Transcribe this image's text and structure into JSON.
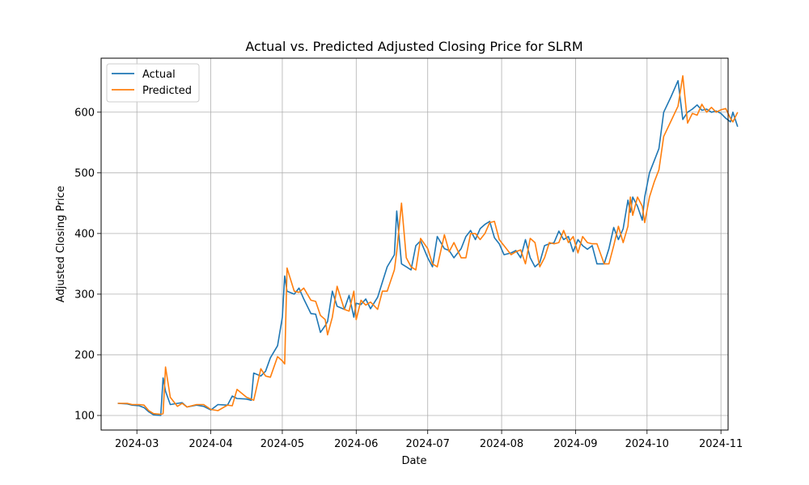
{
  "chart_data": {
    "type": "line",
    "title": "Actual vs. Predicted Adjusted Closing Price for SLRM",
    "xlabel": "Date",
    "ylabel": "Adjusted Closing Price",
    "xlim": [
      "2024-02-15",
      "2024-11-04"
    ],
    "ylim": [
      76,
      689
    ],
    "grid": true,
    "legend_position": "upper-left",
    "x_ticks": [
      "2024-03",
      "2024-04",
      "2024-05",
      "2024-06",
      "2024-07",
      "2024-08",
      "2024-09",
      "2024-10",
      "2024-11"
    ],
    "y_ticks": [
      100,
      200,
      300,
      400,
      500,
      600
    ],
    "series": [
      {
        "name": "Actual",
        "color": "#1f77b4",
        "points": [
          [
            "2024-02-22",
            120
          ],
          [
            "2024-02-26",
            119
          ],
          [
            "2024-02-28",
            117
          ],
          [
            "2024-03-02",
            116
          ],
          [
            "2024-03-04",
            113
          ],
          [
            "2024-03-06",
            106
          ],
          [
            "2024-03-08",
            101
          ],
          [
            "2024-03-11",
            100
          ],
          [
            "2024-03-12",
            162
          ],
          [
            "2024-03-13",
            140
          ],
          [
            "2024-03-15",
            118
          ],
          [
            "2024-03-18",
            120
          ],
          [
            "2024-03-20",
            121
          ],
          [
            "2024-03-22",
            114
          ],
          [
            "2024-03-26",
            117
          ],
          [
            "2024-03-29",
            115
          ],
          [
            "2024-04-01",
            109
          ],
          [
            "2024-04-04",
            118
          ],
          [
            "2024-04-08",
            117
          ],
          [
            "2024-04-10",
            132
          ],
          [
            "2024-04-12",
            128
          ],
          [
            "2024-04-16",
            127
          ],
          [
            "2024-04-18",
            125
          ],
          [
            "2024-04-19",
            170
          ],
          [
            "2024-04-22",
            165
          ],
          [
            "2024-04-24",
            173
          ],
          [
            "2024-04-26",
            195
          ],
          [
            "2024-04-29",
            215
          ],
          [
            "2024-05-01",
            262
          ],
          [
            "2024-05-02",
            330
          ],
          [
            "2024-05-03",
            305
          ],
          [
            "2024-05-06",
            300
          ],
          [
            "2024-05-08",
            310
          ],
          [
            "2024-05-10",
            292
          ],
          [
            "2024-05-13",
            268
          ],
          [
            "2024-05-15",
            267
          ],
          [
            "2024-05-17",
            237
          ],
          [
            "2024-05-19",
            248
          ],
          [
            "2024-05-20",
            255
          ],
          [
            "2024-05-22",
            305
          ],
          [
            "2024-05-24",
            280
          ],
          [
            "2024-05-27",
            275
          ],
          [
            "2024-05-29",
            298
          ],
          [
            "2024-05-31",
            262
          ],
          [
            "2024-06-01",
            285
          ],
          [
            "2024-06-03",
            283
          ],
          [
            "2024-06-05",
            292
          ],
          [
            "2024-06-07",
            276
          ],
          [
            "2024-06-10",
            295
          ],
          [
            "2024-06-12",
            320
          ],
          [
            "2024-06-14",
            345
          ],
          [
            "2024-06-17",
            365
          ],
          [
            "2024-06-18",
            437
          ],
          [
            "2024-06-20",
            350
          ],
          [
            "2024-06-22",
            345
          ],
          [
            "2024-06-24",
            340
          ],
          [
            "2024-06-26",
            380
          ],
          [
            "2024-06-28",
            388
          ],
          [
            "2024-07-01",
            360
          ],
          [
            "2024-07-03",
            345
          ],
          [
            "2024-07-05",
            395
          ],
          [
            "2024-07-08",
            375
          ],
          [
            "2024-07-10",
            372
          ],
          [
            "2024-07-12",
            360
          ],
          [
            "2024-07-15",
            375
          ],
          [
            "2024-07-17",
            395
          ],
          [
            "2024-07-19",
            405
          ],
          [
            "2024-07-21",
            390
          ],
          [
            "2024-07-23",
            408
          ],
          [
            "2024-07-25",
            415
          ],
          [
            "2024-07-27",
            420
          ],
          [
            "2024-07-29",
            393
          ],
          [
            "2024-07-31",
            383
          ],
          [
            "2024-08-02",
            365
          ],
          [
            "2024-08-05",
            368
          ],
          [
            "2024-08-07",
            372
          ],
          [
            "2024-08-09",
            360
          ],
          [
            "2024-08-11",
            390
          ],
          [
            "2024-08-13",
            360
          ],
          [
            "2024-08-15",
            345
          ],
          [
            "2024-08-17",
            352
          ],
          [
            "2024-08-19",
            380
          ],
          [
            "2024-08-21",
            383
          ],
          [
            "2024-08-23",
            385
          ],
          [
            "2024-08-25",
            404
          ],
          [
            "2024-08-27",
            390
          ],
          [
            "2024-08-29",
            395
          ],
          [
            "2024-08-31",
            370
          ],
          [
            "2024-09-02",
            390
          ],
          [
            "2024-09-04",
            380
          ],
          [
            "2024-09-06",
            374
          ],
          [
            "2024-09-08",
            380
          ],
          [
            "2024-09-10",
            350
          ],
          [
            "2024-09-13",
            350
          ],
          [
            "2024-09-15",
            375
          ],
          [
            "2024-09-17",
            410
          ],
          [
            "2024-09-19",
            390
          ],
          [
            "2024-09-21",
            408
          ],
          [
            "2024-09-23",
            455
          ],
          [
            "2024-09-24",
            435
          ],
          [
            "2024-09-25",
            460
          ],
          [
            "2024-09-27",
            445
          ],
          [
            "2024-09-29",
            422
          ],
          [
            "2024-09-30",
            460
          ],
          [
            "2024-10-02",
            500
          ],
          [
            "2024-10-04",
            520
          ],
          [
            "2024-10-06",
            540
          ],
          [
            "2024-10-08",
            600
          ],
          [
            "2024-10-11",
            625
          ],
          [
            "2024-10-14",
            652
          ],
          [
            "2024-10-16",
            588
          ],
          [
            "2024-10-18",
            600
          ],
          [
            "2024-10-20",
            605
          ],
          [
            "2024-10-22",
            612
          ],
          [
            "2024-10-24",
            603
          ],
          [
            "2024-10-26",
            605
          ],
          [
            "2024-10-28",
            600
          ],
          [
            "2024-10-30",
            602
          ],
          [
            "2024-11-01",
            598
          ],
          [
            "2024-11-03",
            590
          ],
          [
            "2024-11-05",
            584
          ],
          [
            "2024-11-06",
            600
          ],
          [
            "2024-11-08",
            576
          ]
        ]
      },
      {
        "name": "Predicted",
        "color": "#ff7f0e",
        "points": [
          [
            "2024-02-22",
            120
          ],
          [
            "2024-02-26",
            120
          ],
          [
            "2024-02-28",
            118
          ],
          [
            "2024-03-02",
            118
          ],
          [
            "2024-03-04",
            117
          ],
          [
            "2024-03-06",
            108
          ],
          [
            "2024-03-08",
            103
          ],
          [
            "2024-03-11",
            102
          ],
          [
            "2024-03-12",
            103
          ],
          [
            "2024-03-13",
            180
          ],
          [
            "2024-03-15",
            130
          ],
          [
            "2024-03-18",
            115
          ],
          [
            "2024-03-20",
            120
          ],
          [
            "2024-03-22",
            114
          ],
          [
            "2024-03-26",
            118
          ],
          [
            "2024-03-29",
            118
          ],
          [
            "2024-04-01",
            110
          ],
          [
            "2024-04-04",
            108
          ],
          [
            "2024-04-08",
            117
          ],
          [
            "2024-04-10",
            116
          ],
          [
            "2024-04-12",
            143
          ],
          [
            "2024-04-16",
            130
          ],
          [
            "2024-04-18",
            127
          ],
          [
            "2024-04-19",
            125
          ],
          [
            "2024-04-22",
            177
          ],
          [
            "2024-04-24",
            165
          ],
          [
            "2024-04-26",
            163
          ],
          [
            "2024-04-29",
            197
          ],
          [
            "2024-05-01",
            190
          ],
          [
            "2024-05-02",
            185
          ],
          [
            "2024-05-03",
            343
          ],
          [
            "2024-05-06",
            305
          ],
          [
            "2024-05-08",
            303
          ],
          [
            "2024-05-10",
            310
          ],
          [
            "2024-05-13",
            290
          ],
          [
            "2024-05-15",
            288
          ],
          [
            "2024-05-17",
            265
          ],
          [
            "2024-05-19",
            258
          ],
          [
            "2024-05-20",
            233
          ],
          [
            "2024-05-22",
            262
          ],
          [
            "2024-05-24",
            313
          ],
          [
            "2024-05-27",
            275
          ],
          [
            "2024-05-29",
            272
          ],
          [
            "2024-05-31",
            305
          ],
          [
            "2024-06-01",
            258
          ],
          [
            "2024-06-03",
            290
          ],
          [
            "2024-06-05",
            282
          ],
          [
            "2024-06-07",
            287
          ],
          [
            "2024-06-10",
            275
          ],
          [
            "2024-06-12",
            305
          ],
          [
            "2024-06-14",
            305
          ],
          [
            "2024-06-17",
            340
          ],
          [
            "2024-06-18",
            370
          ],
          [
            "2024-06-20",
            450
          ],
          [
            "2024-06-22",
            360
          ],
          [
            "2024-06-24",
            345
          ],
          [
            "2024-06-26",
            340
          ],
          [
            "2024-06-28",
            392
          ],
          [
            "2024-07-01",
            375
          ],
          [
            "2024-07-03",
            350
          ],
          [
            "2024-07-05",
            345
          ],
          [
            "2024-07-08",
            398
          ],
          [
            "2024-07-10",
            370
          ],
          [
            "2024-07-12",
            385
          ],
          [
            "2024-07-15",
            360
          ],
          [
            "2024-07-17",
            360
          ],
          [
            "2024-07-19",
            400
          ],
          [
            "2024-07-21",
            400
          ],
          [
            "2024-07-23",
            390
          ],
          [
            "2024-07-25",
            400
          ],
          [
            "2024-07-27",
            418
          ],
          [
            "2024-07-29",
            420
          ],
          [
            "2024-07-31",
            390
          ],
          [
            "2024-08-02",
            380
          ],
          [
            "2024-08-05",
            365
          ],
          [
            "2024-08-07",
            370
          ],
          [
            "2024-08-09",
            373
          ],
          [
            "2024-08-11",
            350
          ],
          [
            "2024-08-13",
            392
          ],
          [
            "2024-08-15",
            385
          ],
          [
            "2024-08-17",
            345
          ],
          [
            "2024-08-19",
            360
          ],
          [
            "2024-08-21",
            385
          ],
          [
            "2024-08-23",
            383
          ],
          [
            "2024-08-25",
            385
          ],
          [
            "2024-08-27",
            405
          ],
          [
            "2024-08-29",
            385
          ],
          [
            "2024-08-31",
            395
          ],
          [
            "2024-09-02",
            368
          ],
          [
            "2024-09-04",
            395
          ],
          [
            "2024-09-06",
            385
          ],
          [
            "2024-09-08",
            383
          ],
          [
            "2024-09-10",
            383
          ],
          [
            "2024-09-13",
            350
          ],
          [
            "2024-09-15",
            350
          ],
          [
            "2024-09-17",
            380
          ],
          [
            "2024-09-19",
            412
          ],
          [
            "2024-09-21",
            385
          ],
          [
            "2024-09-23",
            412
          ],
          [
            "2024-09-24",
            460
          ],
          [
            "2024-09-25",
            430
          ],
          [
            "2024-09-27",
            460
          ],
          [
            "2024-09-29",
            445
          ],
          [
            "2024-09-30",
            418
          ],
          [
            "2024-10-02",
            460
          ],
          [
            "2024-10-04",
            485
          ],
          [
            "2024-10-06",
            505
          ],
          [
            "2024-10-08",
            560
          ],
          [
            "2024-10-11",
            585
          ],
          [
            "2024-10-14",
            610
          ],
          [
            "2024-10-16",
            660
          ],
          [
            "2024-10-18",
            582
          ],
          [
            "2024-10-20",
            598
          ],
          [
            "2024-10-22",
            595
          ],
          [
            "2024-10-24",
            613
          ],
          [
            "2024-10-26",
            600
          ],
          [
            "2024-10-28",
            608
          ],
          [
            "2024-10-30",
            600
          ],
          [
            "2024-11-01",
            604
          ],
          [
            "2024-11-03",
            606
          ],
          [
            "2024-11-05",
            590
          ],
          [
            "2024-11-06",
            584
          ],
          [
            "2024-11-08",
            600
          ]
        ]
      }
    ]
  }
}
